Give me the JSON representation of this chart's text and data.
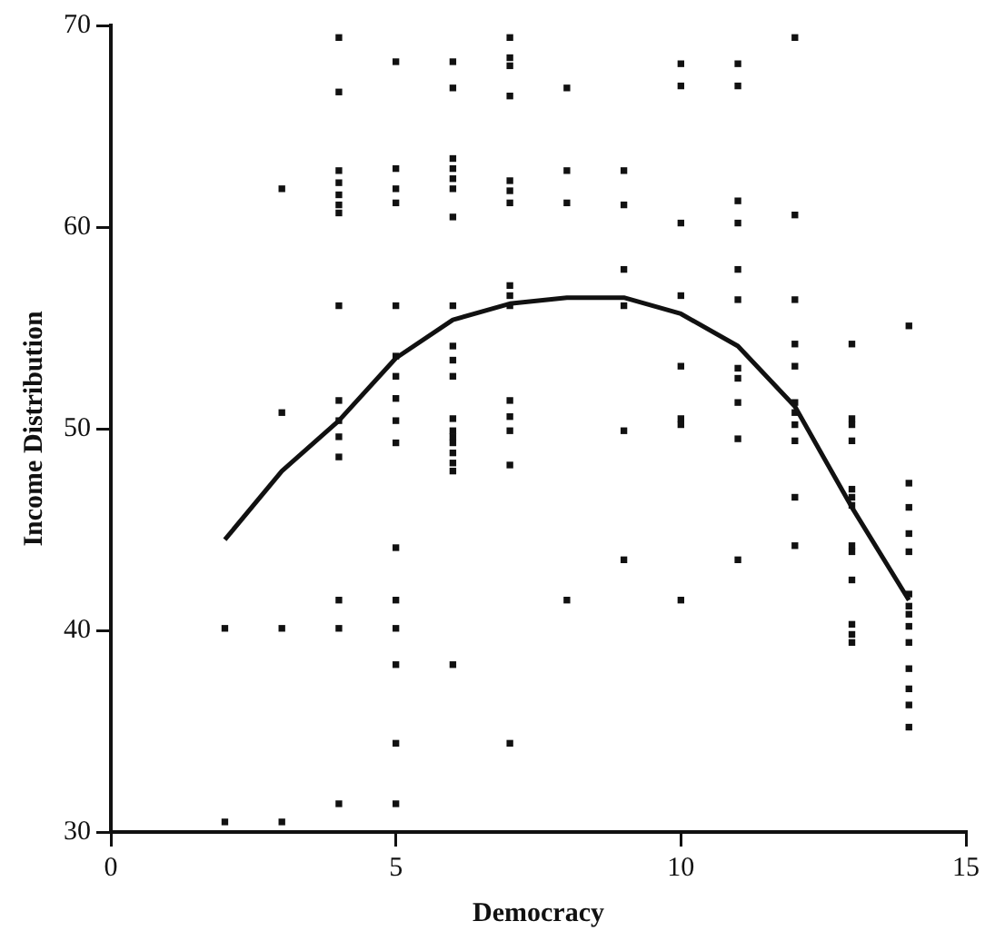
{
  "chart_data": {
    "type": "scatter",
    "xlabel": "Democracy",
    "ylabel": "Income Distribution",
    "xlim": [
      0,
      15
    ],
    "xticks": [
      0,
      5,
      10,
      15
    ],
    "ylim": [
      30,
      70
    ],
    "yticks": [
      30,
      40,
      50,
      60,
      70
    ],
    "grid": false,
    "legend": false,
    "marker": "square",
    "series": [
      {
        "type": "scatter",
        "color": "#111111",
        "x": [
          2,
          2,
          3,
          3,
          3,
          3,
          4,
          4,
          4,
          4,
          4,
          4,
          4,
          4,
          4,
          4,
          4,
          4,
          4,
          4,
          4,
          5,
          5,
          5,
          5,
          5,
          5,
          5,
          5,
          5,
          5,
          5,
          5,
          5,
          5,
          5,
          5,
          6,
          6,
          6,
          6,
          6,
          6,
          6,
          6,
          6,
          6,
          6,
          6,
          6,
          6,
          6,
          6,
          6,
          6,
          6,
          7,
          7,
          7,
          7,
          7,
          7,
          7,
          7,
          7,
          7,
          7,
          7,
          7,
          7,
          7,
          8,
          8,
          8,
          8,
          9,
          9,
          9,
          9,
          9,
          9,
          10,
          10,
          10,
          10,
          10,
          10,
          10,
          10,
          11,
          11,
          11,
          11,
          11,
          11,
          11,
          11,
          11,
          11,
          11,
          12,
          12,
          12,
          12,
          12,
          12,
          12,
          12,
          12,
          12,
          12,
          13,
          13,
          13,
          13,
          13,
          13,
          13,
          13,
          13,
          13,
          13,
          13,
          13,
          14,
          14,
          14,
          14,
          14,
          14,
          14,
          14,
          14,
          14,
          14,
          14,
          14,
          14
        ],
        "values": [
          30.5,
          40.1,
          30.5,
          40.1,
          50.8,
          61.9,
          69.4,
          66.7,
          62.8,
          62.2,
          61.6,
          61.1,
          60.7,
          56.1,
          51.4,
          50.4,
          49.6,
          48.6,
          41.5,
          40.1,
          31.4,
          68.2,
          62.9,
          61.9,
          61.2,
          56.1,
          53.6,
          52.6,
          51.5,
          50.4,
          49.3,
          44.1,
          41.5,
          40.1,
          38.3,
          34.4,
          31.4,
          68.2,
          66.9,
          63.4,
          62.9,
          62.4,
          61.9,
          60.5,
          56.1,
          54.1,
          53.4,
          52.6,
          50.5,
          49.9,
          49.6,
          49.3,
          48.8,
          48.3,
          47.9,
          38.3,
          69.4,
          68.4,
          68.0,
          66.5,
          62.3,
          61.8,
          61.2,
          57.1,
          56.6,
          56.1,
          51.4,
          50.6,
          49.9,
          48.2,
          34.4,
          66.9,
          62.8,
          61.2,
          41.5,
          62.8,
          61.1,
          57.9,
          56.1,
          49.9,
          43.5,
          68.1,
          67.0,
          60.2,
          56.6,
          53.1,
          50.5,
          50.2,
          41.5,
          68.1,
          67.0,
          61.3,
          60.2,
          57.9,
          56.4,
          53.0,
          52.5,
          51.3,
          49.5,
          43.5,
          69.4,
          60.6,
          56.4,
          54.2,
          53.1,
          51.3,
          50.8,
          50.2,
          49.4,
          46.6,
          44.2,
          54.2,
          50.5,
          50.2,
          49.4,
          47.0,
          46.6,
          46.2,
          44.2,
          43.9,
          42.5,
          40.3,
          39.8,
          39.4,
          55.1,
          47.3,
          46.1,
          44.8,
          43.9,
          41.8,
          41.2,
          40.8,
          40.2,
          39.4,
          38.1,
          37.1,
          36.3,
          35.2
        ]
      },
      {
        "type": "line",
        "color": "#111111",
        "marker": "none",
        "line_style": "solid",
        "x": [
          2,
          3,
          4,
          5,
          6,
          7,
          8,
          9,
          10,
          11,
          12,
          13,
          14
        ],
        "values": [
          44.5,
          47.9,
          50.4,
          53.5,
          55.4,
          56.2,
          56.5,
          56.5,
          55.7,
          54.1,
          51.1,
          46.1,
          41.5
        ]
      }
    ]
  }
}
